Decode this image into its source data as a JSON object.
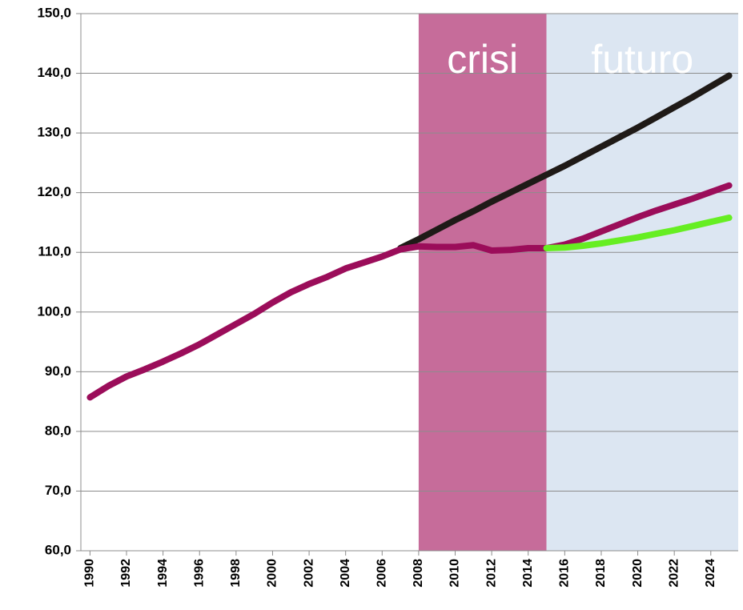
{
  "chart_data": {
    "type": "line",
    "x": [
      1990,
      1991,
      1992,
      1993,
      1994,
      1995,
      1996,
      1997,
      1998,
      1999,
      2000,
      2001,
      2002,
      2003,
      2004,
      2005,
      2006,
      2007,
      2008,
      2009,
      2010,
      2011,
      2012,
      2013,
      2014,
      2015,
      2016,
      2017,
      2018,
      2019,
      2020,
      2021,
      2022,
      2023,
      2024,
      2025
    ],
    "xlim": [
      1989.5,
      2025.5
    ],
    "xticks": [
      1990,
      1992,
      1994,
      1996,
      1998,
      2000,
      2002,
      2004,
      2006,
      2008,
      2010,
      2012,
      2014,
      2016,
      2018,
      2020,
      2022,
      2024
    ],
    "ylim": [
      60,
      150
    ],
    "yticks": [
      {
        "value": 60,
        "label": "60,0"
      },
      {
        "value": 70,
        "label": "70,0"
      },
      {
        "value": 80,
        "label": "80,0"
      },
      {
        "value": 90,
        "label": "90,0"
      },
      {
        "value": 100,
        "label": "100,0"
      },
      {
        "value": 110,
        "label": "110,0"
      },
      {
        "value": 120,
        "label": "120,0"
      },
      {
        "value": 130,
        "label": "130,0"
      },
      {
        "value": 140,
        "label": "140,0"
      },
      {
        "value": 150,
        "label": "150,0"
      }
    ],
    "grid": true,
    "regions": [
      {
        "label": "crisi",
        "from": 2008,
        "to": 2015,
        "color": "#c66c9a"
      },
      {
        "label": "futuro",
        "from": 2015,
        "to": 2025.5,
        "color": "#dce6f2"
      }
    ],
    "series": [
      {
        "color": "#1f1a17",
        "values": [
          null,
          null,
          null,
          null,
          null,
          null,
          null,
          null,
          null,
          null,
          null,
          null,
          null,
          null,
          null,
          null,
          null,
          110.7,
          112.2,
          113.8,
          115.4,
          116.9,
          118.5,
          120.0,
          121.5,
          123.0,
          124.5,
          126.1,
          127.7,
          129.3,
          130.9,
          132.6,
          134.3,
          136.0,
          137.8,
          139.6
        ]
      },
      {
        "color": "#9b0d5a",
        "values": [
          85.7,
          87.6,
          89.2,
          90.4,
          91.7,
          93.1,
          94.6,
          96.3,
          98.0,
          99.7,
          101.6,
          103.3,
          104.7,
          105.9,
          107.3,
          108.3,
          109.3,
          110.5,
          111.0,
          110.9,
          110.9,
          111.2,
          110.3,
          110.4,
          110.7,
          110.7,
          111.3,
          112.3,
          113.5,
          114.7,
          115.9,
          117.0,
          118.0,
          119.0,
          120.1,
          121.2
        ]
      },
      {
        "color": "#66ee22",
        "values": [
          null,
          null,
          null,
          null,
          null,
          null,
          null,
          null,
          null,
          null,
          null,
          null,
          null,
          null,
          null,
          null,
          null,
          null,
          null,
          null,
          null,
          null,
          null,
          null,
          null,
          110.7,
          110.8,
          111.1,
          111.5,
          112.0,
          112.5,
          113.1,
          113.7,
          114.4,
          115.1,
          115.8
        ]
      }
    ]
  }
}
